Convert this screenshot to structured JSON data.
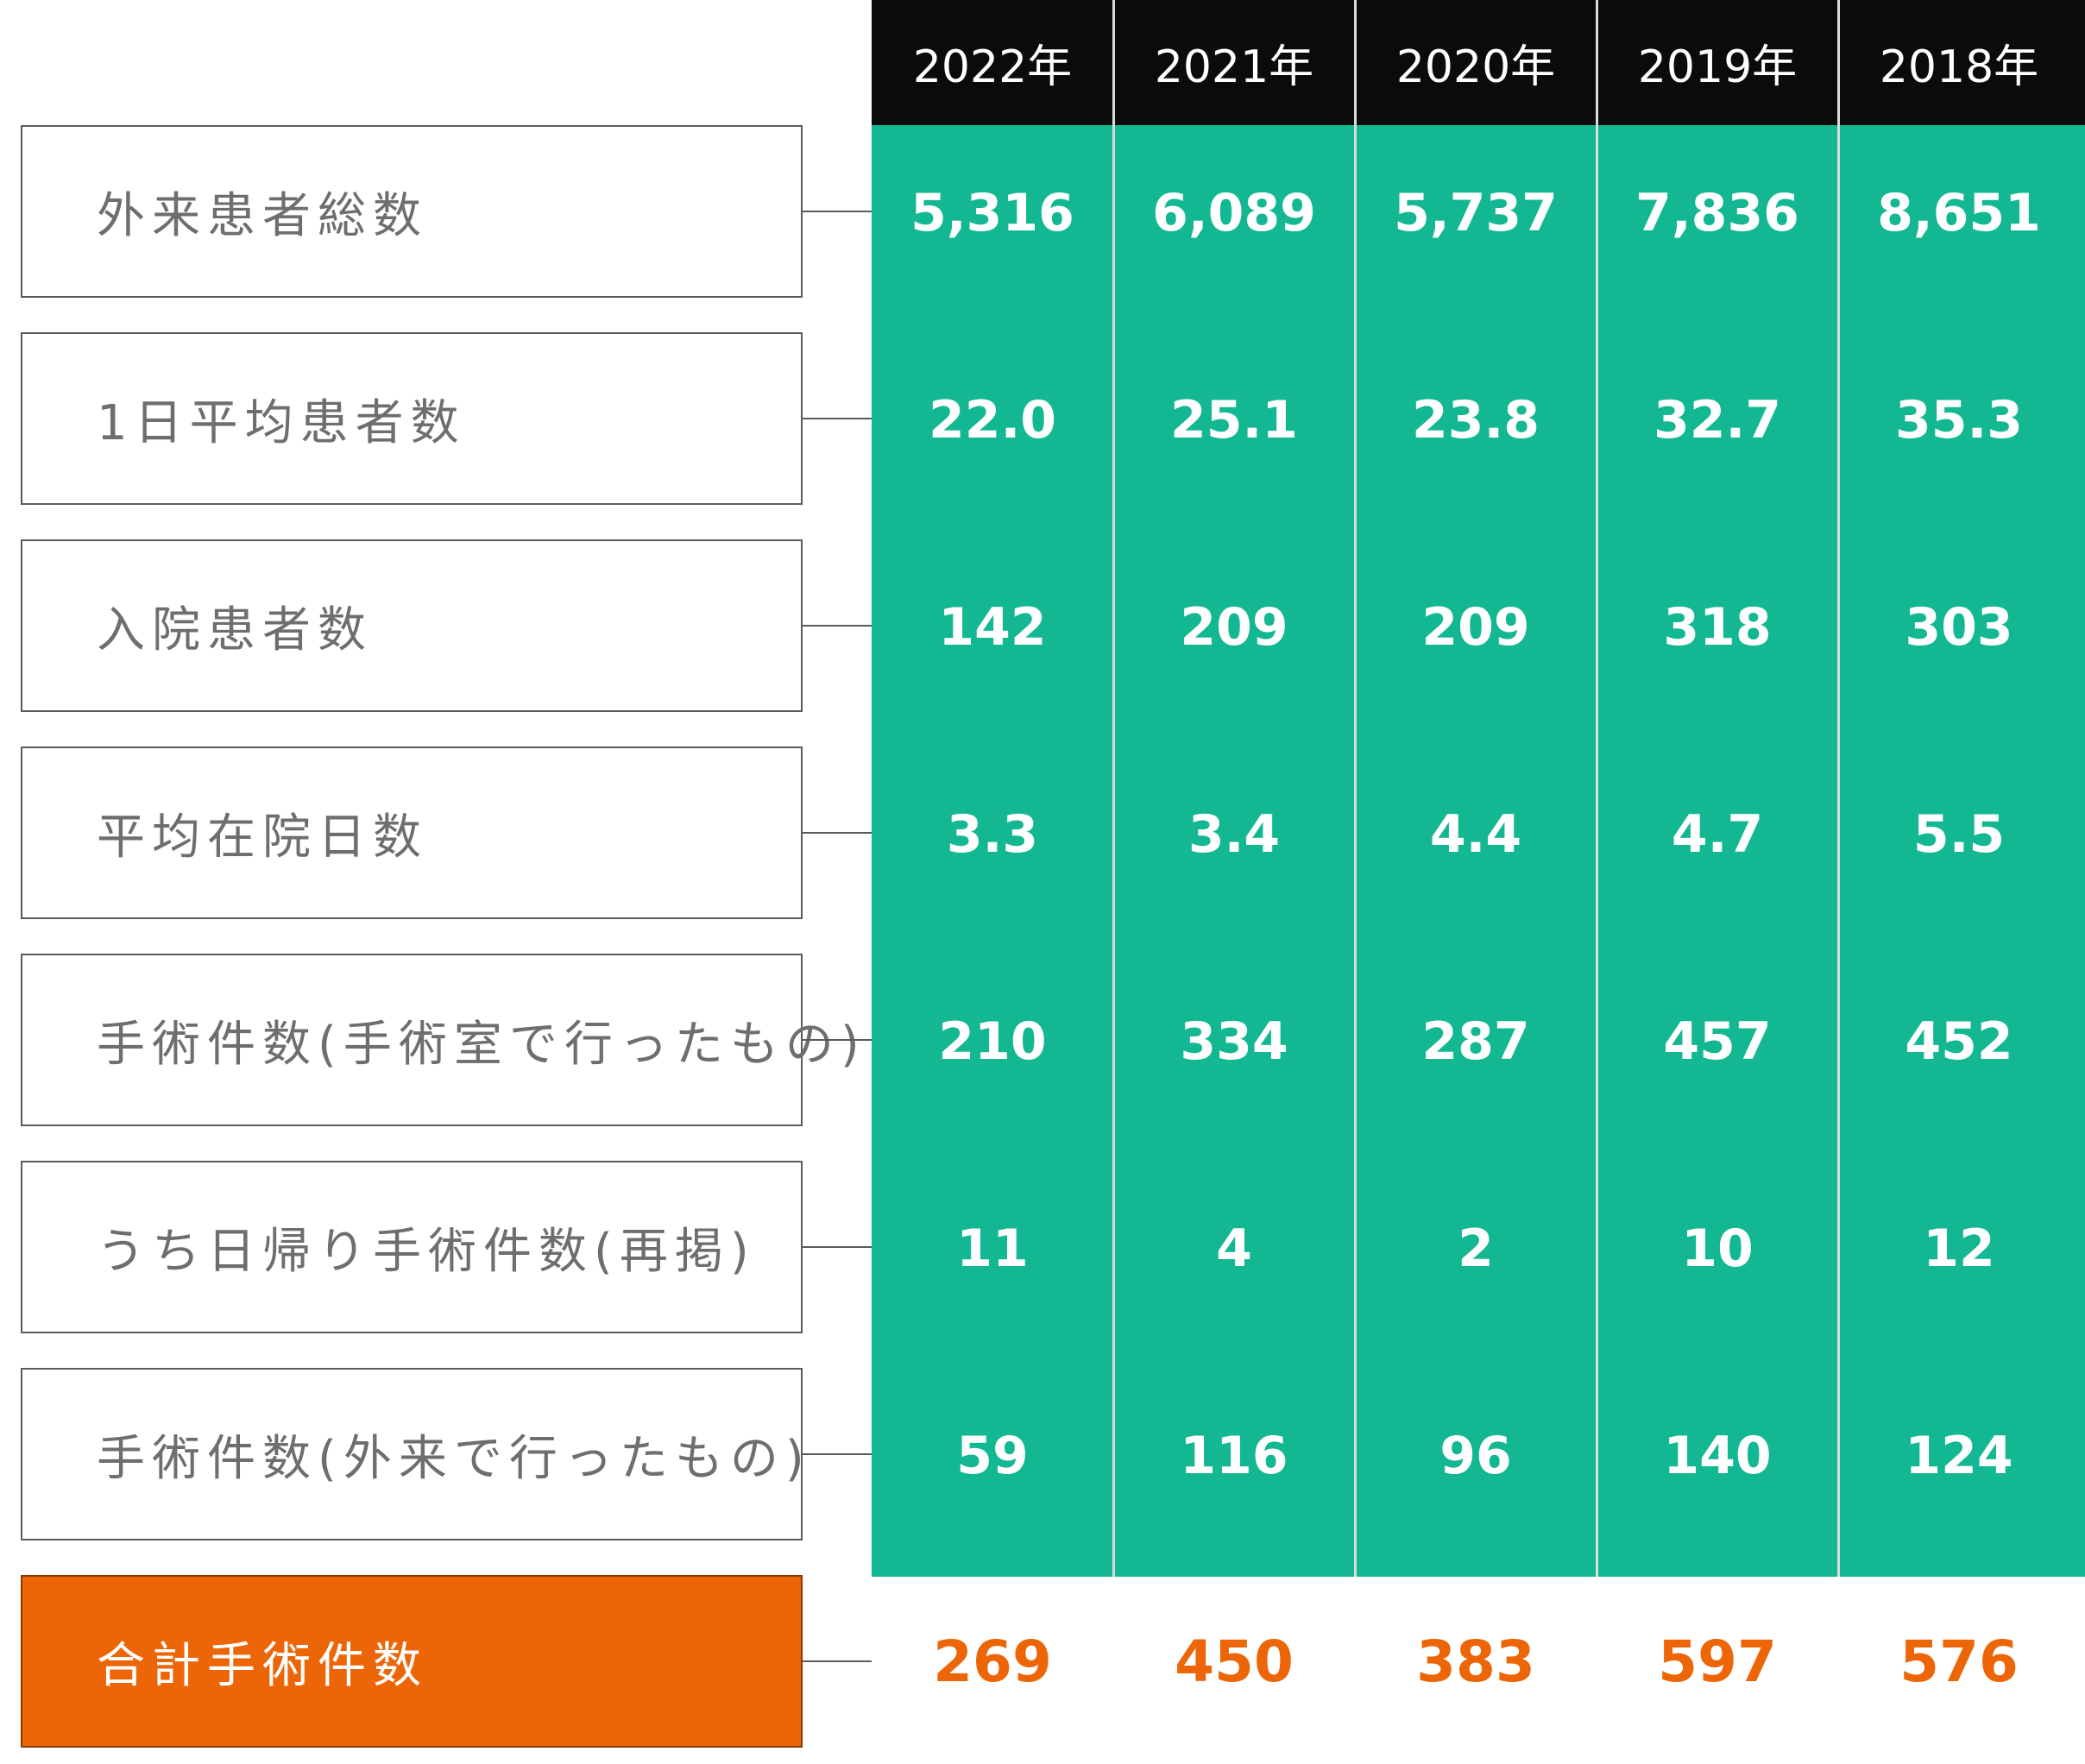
{
  "chart_data": {
    "type": "table",
    "columns": [
      "2022年",
      "2021年",
      "2020年",
      "2019年",
      "2018年"
    ],
    "rows": [
      {
        "label": "外来患者総数",
        "values": [
          "5,316",
          "6,089",
          "5,737",
          "7,836",
          "8,651"
        ]
      },
      {
        "label": "1日平均患者数",
        "values": [
          "22.0",
          "25.1",
          "23.8",
          "32.7",
          "35.3"
        ]
      },
      {
        "label": "入院患者数",
        "values": [
          "142",
          "209",
          "209",
          "318",
          "303"
        ]
      },
      {
        "label": "平均在院日数",
        "values": [
          "3.3",
          "3.4",
          "4.4",
          "4.7",
          "5.5"
        ]
      },
      {
        "label": "手術件数(手術室で行ったもの)",
        "values": [
          "210",
          "334",
          "287",
          "457",
          "452"
        ]
      },
      {
        "label": "うち日帰り手術件数(再掲)",
        "values": [
          "11",
          "4",
          "2",
          "10",
          "12"
        ]
      },
      {
        "label": "手術件数(外来で行ったもの)",
        "values": [
          "59",
          "116",
          "96",
          "140",
          "124"
        ]
      },
      {
        "label": "合計手術件数",
        "values": [
          "269",
          "450",
          "383",
          "597",
          "576"
        ],
        "highlight": true
      }
    ],
    "colors": {
      "header_bg": "#0b0b0b",
      "data_bg": "#13b893",
      "highlight": "#ec6608"
    }
  }
}
